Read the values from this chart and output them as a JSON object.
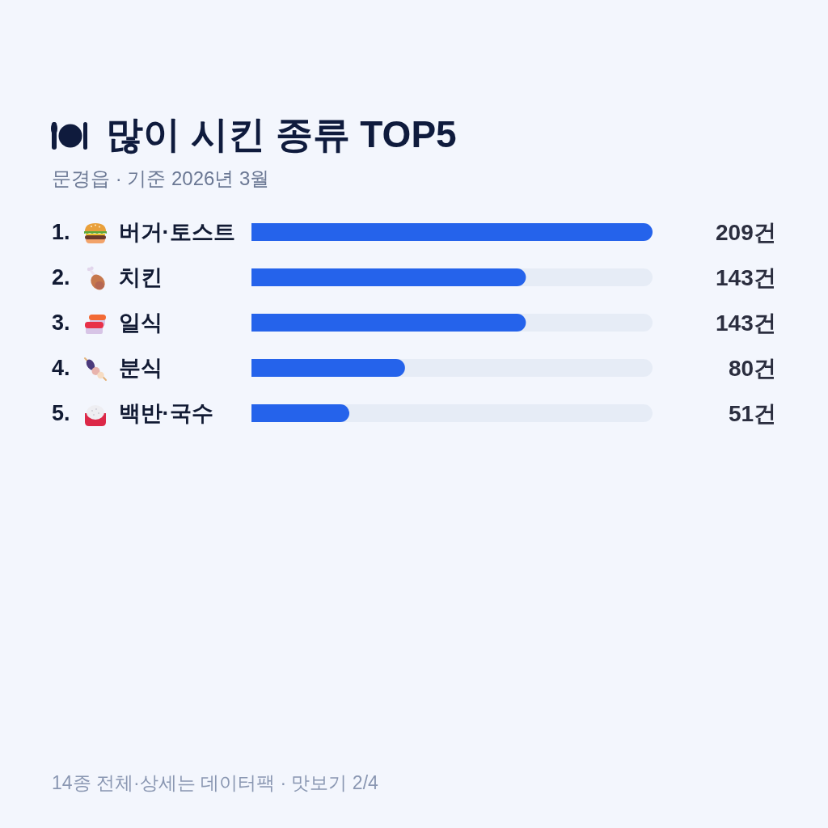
{
  "chart_data": {
    "type": "bar",
    "orientation": "horizontal",
    "title": "많이 시킨 종류 TOP5",
    "subtitle": "문경읍 · 기준 2026년 3월",
    "categories": [
      "1. 버거·토스트",
      "2. 치킨",
      "3. 일식",
      "4. 분식",
      "5. 백반·국수"
    ],
    "values": [
      209,
      143,
      143,
      80,
      51
    ],
    "value_labels": [
      "209건",
      "143건",
      "143건",
      "80건",
      "51건"
    ],
    "color": "#2563eb",
    "xlim": [
      0,
      209
    ],
    "tick_labels": "y",
    "annotations": [
      "14종 전체·상세는 데이터팩 · 맛보기 2/4"
    ]
  }
}
